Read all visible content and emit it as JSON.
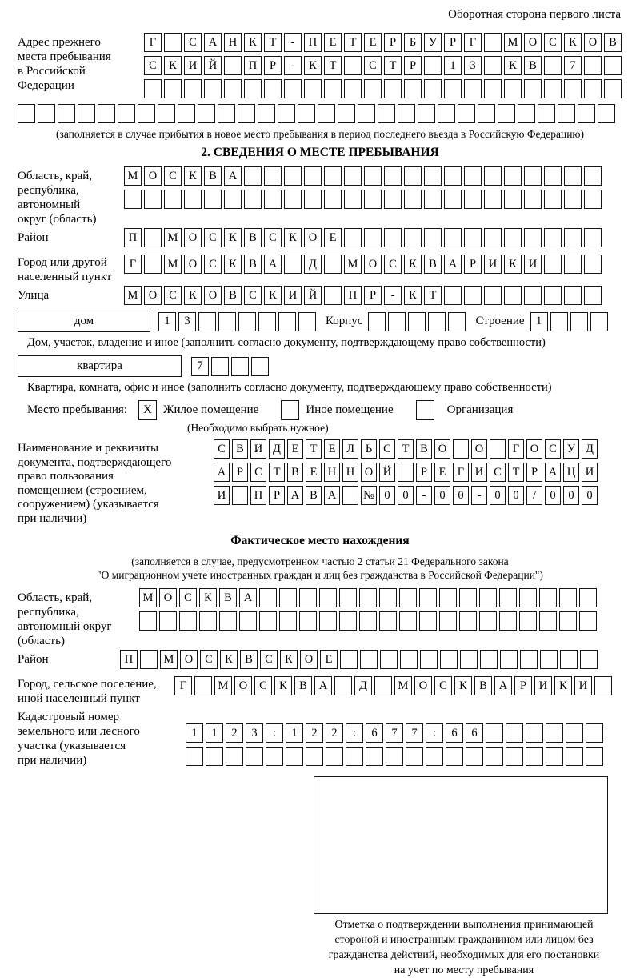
{
  "page": {
    "header_note": "Оборотная сторона первого листа"
  },
  "prev_address": {
    "label_lines": [
      "Адрес прежнего",
      "места пребывания",
      "в Российской",
      "Федерации"
    ],
    "rows": [
      {
        "text": "Г САНКТ-ПЕТЕРБУРГ МОСКОВ",
        "len": 24
      },
      {
        "text": "СКИЙ ПР-КТ СТР 13 КВ 7",
        "len": 24
      },
      {
        "text": "",
        "len": 24
      }
    ],
    "row_full": {
      "text": "",
      "len": 30
    },
    "note": "(заполняется в случае прибытия в новое место пребывания в период последнего въезда в Российскую Федерацию)"
  },
  "section2": {
    "title": "2. СВЕДЕНИЯ О МЕСТЕ ПРЕБЫВАНИЯ",
    "region": {
      "label_lines": [
        "Область, край,",
        "республика,",
        "автономный",
        "округ (область)"
      ],
      "rows": [
        {
          "text": "МОСКВА",
          "len": 24
        },
        {
          "text": "",
          "len": 24
        }
      ]
    },
    "district": {
      "label": "Район",
      "row": {
        "text": "П МОСКВСКОЕ",
        "len": 24
      }
    },
    "city": {
      "label_lines": [
        "Город или другой",
        "населенный пункт"
      ],
      "row": {
        "text": "Г МОСКВА Д МОСКВАРИКИ",
        "len": 24
      }
    },
    "street": {
      "label": "Улица",
      "row": {
        "text": "МОСКОВСКИЙ ПР-КТ",
        "len": 24
      }
    },
    "house": {
      "box_label": "дом",
      "cells": {
        "text": "13",
        "len": 8
      },
      "korpus_label": "Корпус",
      "korpus_cells": {
        "text": "",
        "len": 5
      },
      "stroenie_label": "Строение",
      "stroenie_cells": {
        "text": "1",
        "len": 4
      },
      "note": "Дом, участок, владение и иное (заполнить согласно документу, подтверждающему право собственности)"
    },
    "apartment": {
      "box_label": "квартира",
      "cells": {
        "text": "7",
        "len": 4
      },
      "note": "Квартира, комната, офис и иное (заполнить согласно документу, подтверждающему право собственности)"
    },
    "stay_type": {
      "label": "Место пребывания:",
      "options": [
        {
          "label": "Жилое помещение",
          "mark": "X"
        },
        {
          "label": "Иное помещение",
          "mark": ""
        },
        {
          "label": "Организация",
          "mark": ""
        }
      ],
      "note": "(Необходимо выбрать нужное)"
    },
    "document": {
      "label_lines": [
        "Наименование и реквизиты",
        "документа, подтверждающего",
        "право пользования",
        "помещением (строением,",
        "сооружением) (указывается",
        "при наличии)"
      ],
      "rows": [
        {
          "text": "СВИДЕТЕЛЬСТВО О ГОСУД",
          "len": 21
        },
        {
          "text": "АРСТВЕННОЙ РЕГИСТРАЦИ",
          "len": 21
        },
        {
          "text": "И ПРАВА №00-00-00/000",
          "len": 21
        }
      ]
    }
  },
  "actual_location": {
    "title": "Фактическое место нахождения",
    "note_lines": [
      "(заполняется в случае, предусмотренном частью 2 статьи 21 Федерального закона",
      "\"О миграционном учете иностранных граждан и лиц без гражданства в Российской Федерации\")"
    ],
    "region": {
      "label_lines": [
        "Область, край,",
        "республика,",
        "автономный округ",
        "(область)"
      ],
      "rows": [
        {
          "text": "МОСКВА",
          "len": 23
        },
        {
          "text": "",
          "len": 23
        }
      ]
    },
    "district": {
      "label": "Район",
      "row": {
        "text": "П МОСКВСКОЕ",
        "len": 24
      }
    },
    "city": {
      "label_lines": [
        "Город, сельское поселение,",
        "иной населенный пункт"
      ],
      "row": {
        "text": "Г МОСКВА Д МОСКВАРИКИ",
        "len": 22
      }
    },
    "cadastral": {
      "label_lines": [
        "Кадастровый номер",
        "земельного или лесного",
        "участка (указывается",
        "при наличии)"
      ],
      "rows": [
        {
          "text": "1123:122:677:66",
          "len": 21
        },
        {
          "text": "",
          "len": 21
        }
      ]
    },
    "mark_note_lines": [
      "Отметка о подтверждении выполнения принимающей",
      "стороной и иностранным гражданином или лицом без",
      "гражданства действий, необходимых для его постановки",
      "на учет по месту пребывания"
    ]
  }
}
